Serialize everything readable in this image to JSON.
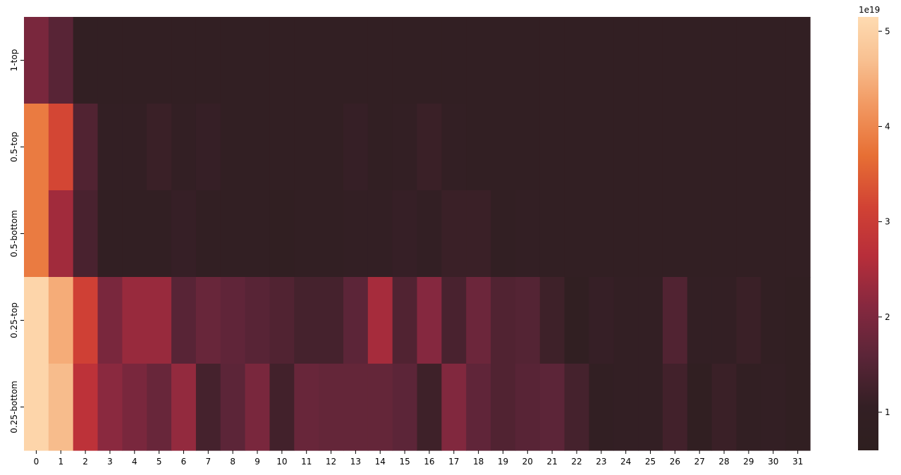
{
  "chart_data": {
    "type": "heatmap",
    "title": "",
    "xlabel": "",
    "ylabel": "",
    "x_categories": [
      "0",
      "1",
      "2",
      "3",
      "4",
      "5",
      "6",
      "7",
      "8",
      "9",
      "10",
      "11",
      "12",
      "13",
      "14",
      "15",
      "16",
      "17",
      "18",
      "19",
      "20",
      "21",
      "22",
      "23",
      "24",
      "25",
      "26",
      "27",
      "28",
      "29",
      "30",
      "31"
    ],
    "y_categories": [
      "1-top",
      "0.5-top",
      "0.5-bottom",
      "0.25-top",
      "0.25-bottom"
    ],
    "values_1e19": [
      [
        1.95,
        1.55,
        0.95,
        0.95,
        0.95,
        0.95,
        0.95,
        0.95,
        0.95,
        0.95,
        0.95,
        0.95,
        0.95,
        0.95,
        0.95,
        0.95,
        0.95,
        0.95,
        0.95,
        0.95,
        0.95,
        0.95,
        0.95,
        0.95,
        0.95,
        0.95,
        0.95,
        0.95,
        0.95,
        0.95,
        0.95,
        0.95
      ],
      [
        3.85,
        3.2,
        1.45,
        1.05,
        1.05,
        1.15,
        1.05,
        1.1,
        1.0,
        0.95,
        0.95,
        0.95,
        0.95,
        1.1,
        1.0,
        1.05,
        1.15,
        1.05,
        0.95,
        0.95,
        0.95,
        0.95,
        0.95,
        0.95,
        0.95,
        0.95,
        0.95,
        0.95,
        0.95,
        0.95,
        0.95,
        0.95
      ],
      [
        3.85,
        2.4,
        1.35,
        1.0,
        1.0,
        1.0,
        1.1,
        0.95,
        0.95,
        1.0,
        0.9,
        1.0,
        0.95,
        1.05,
        1.05,
        1.1,
        1.05,
        1.15,
        1.15,
        0.95,
        1.05,
        0.95,
        0.95,
        0.95,
        0.95,
        0.95,
        0.95,
        0.95,
        0.95,
        0.95,
        0.95,
        0.95
      ],
      [
        5.05,
        4.45,
        3.1,
        1.95,
        2.3,
        2.3,
        1.55,
        1.75,
        1.65,
        1.55,
        1.45,
        1.3,
        1.3,
        1.6,
        2.45,
        1.45,
        2.1,
        1.35,
        1.8,
        1.45,
        1.5,
        1.2,
        0.85,
        1.1,
        1.05,
        1.05,
        1.45,
        1.05,
        1.05,
        1.15,
        0.95,
        0.9
      ],
      [
        5.05,
        4.65,
        2.75,
        2.15,
        1.95,
        1.75,
        2.25,
        1.3,
        1.6,
        1.95,
        1.25,
        1.75,
        1.7,
        1.7,
        1.7,
        1.6,
        1.2,
        2.05,
        1.65,
        1.45,
        1.55,
        1.6,
        1.3,
        0.95,
        1.05,
        1.05,
        1.25,
        0.9,
        1.15,
        0.95,
        1.05,
        0.9
      ]
    ],
    "colorbar": {
      "ticks": [
        "1",
        "2",
        "3",
        "4",
        "5"
      ],
      "tick_values_1e19": [
        1,
        2,
        3,
        4,
        5
      ],
      "min_1e19": 0.6,
      "max_1e19": 5.15,
      "offset_label": "1e19",
      "colormap": "icefire-red-half"
    }
  }
}
